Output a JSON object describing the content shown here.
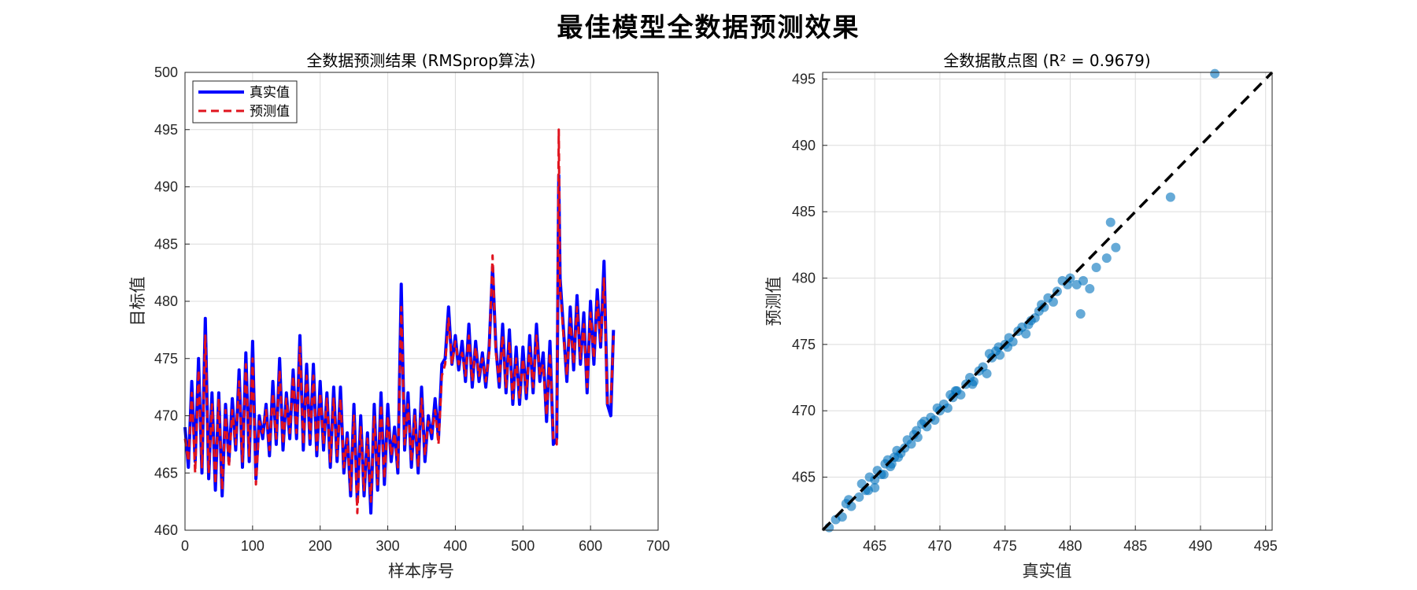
{
  "page": {
    "title": "最佳模型全数据预测效果"
  },
  "colors": {
    "true_line": "#0000ff",
    "pred_line": "#e0141e",
    "scatter": "#0072bd",
    "diag": "#000000",
    "grid": "#dcdcdc"
  },
  "chart_data": [
    {
      "type": "line",
      "title": "全数据预测结果 (RMSprop算法)",
      "xlabel": "样本序号",
      "ylabel": "目标值",
      "xlim": [
        0,
        700
      ],
      "ylim": [
        460,
        500
      ],
      "xticks": [
        0,
        100,
        200,
        300,
        400,
        500,
        600,
        700
      ],
      "yticks": [
        460,
        465,
        470,
        475,
        480,
        485,
        490,
        495,
        500
      ],
      "grid": true,
      "legend_position": "top-left",
      "x": [
        0,
        5,
        10,
        15,
        20,
        25,
        30,
        35,
        40,
        45,
        50,
        55,
        60,
        65,
        70,
        75,
        80,
        85,
        90,
        95,
        100,
        105,
        110,
        115,
        120,
        125,
        130,
        135,
        140,
        145,
        150,
        155,
        160,
        165,
        170,
        175,
        180,
        185,
        190,
        195,
        200,
        205,
        210,
        215,
        220,
        225,
        230,
        235,
        240,
        245,
        250,
        255,
        260,
        265,
        270,
        275,
        280,
        285,
        290,
        295,
        300,
        305,
        310,
        315,
        320,
        325,
        330,
        335,
        340,
        345,
        350,
        355,
        360,
        365,
        370,
        375,
        380,
        385,
        390,
        395,
        400,
        405,
        410,
        415,
        420,
        425,
        430,
        435,
        440,
        445,
        450,
        455,
        460,
        465,
        470,
        475,
        480,
        485,
        490,
        495,
        500,
        505,
        510,
        515,
        520,
        525,
        530,
        535,
        540,
        545,
        550,
        553,
        555,
        560,
        565,
        570,
        575,
        580,
        585,
        590,
        595,
        600,
        605,
        610,
        615,
        620,
        625,
        630,
        634
      ],
      "series": [
        {
          "name": "真实值",
          "style": "solid",
          "values": [
            469.0,
            465.5,
            473.0,
            466.0,
            475.0,
            465.0,
            478.5,
            464.5,
            472.0,
            463.5,
            472.0,
            463.0,
            471.0,
            466.0,
            471.5,
            467.0,
            474.0,
            465.5,
            475.5,
            466.0,
            476.5,
            464.5,
            470.0,
            468.0,
            471.0,
            466.5,
            473.0,
            467.5,
            475.0,
            467.0,
            472.0,
            468.0,
            474.0,
            468.0,
            477.0,
            467.0,
            474.5,
            467.5,
            474.5,
            466.5,
            473.0,
            467.0,
            472.0,
            465.5,
            472.5,
            466.0,
            472.5,
            465.0,
            468.5,
            463.0,
            471.0,
            462.5,
            470.0,
            463.0,
            468.5,
            461.5,
            471.0,
            463.5,
            472.0,
            464.0,
            471.0,
            466.0,
            469.0,
            465.0,
            481.5,
            467.0,
            472.0,
            465.5,
            470.5,
            465.0,
            472.5,
            466.0,
            470.0,
            468.0,
            471.5,
            468.0,
            474.5,
            475.0,
            479.5,
            474.5,
            477.0,
            474.0,
            476.5,
            473.0,
            478.0,
            472.5,
            476.5,
            473.0,
            475.5,
            472.5,
            476.0,
            483.0,
            476.0,
            472.5,
            478.0,
            472.0,
            477.5,
            471.0,
            476.0,
            471.0,
            476.0,
            471.5,
            477.0,
            472.0,
            478.0,
            473.0,
            475.5,
            469.5,
            476.5,
            467.5,
            468.0,
            491.0,
            482.0,
            477.5,
            473.0,
            479.5,
            474.0,
            480.5,
            474.5,
            479.0,
            472.0,
            480.0,
            474.5,
            481.0,
            476.0,
            483.5,
            471.0,
            470.0,
            477.5
          ]
        },
        {
          "name": "预测值",
          "style": "dashed",
          "values": [
            468.0,
            466.0,
            472.0,
            465.0,
            474.0,
            465.5,
            477.0,
            465.0,
            471.0,
            464.0,
            471.5,
            463.5,
            470.5,
            465.5,
            470.5,
            467.5,
            473.0,
            466.0,
            474.5,
            466.5,
            475.0,
            464.0,
            469.5,
            468.5,
            470.5,
            467.0,
            472.0,
            468.0,
            474.0,
            467.5,
            471.5,
            468.5,
            473.5,
            468.5,
            476.0,
            467.5,
            473.5,
            468.0,
            473.5,
            467.0,
            472.0,
            467.5,
            471.5,
            466.0,
            471.5,
            466.5,
            471.5,
            465.5,
            468.0,
            463.5,
            470.0,
            461.5,
            469.0,
            463.5,
            468.0,
            462.5,
            470.0,
            464.0,
            471.0,
            464.5,
            470.0,
            466.5,
            468.5,
            465.5,
            479.5,
            467.5,
            471.0,
            466.0,
            470.0,
            465.5,
            471.5,
            466.5,
            469.5,
            468.5,
            470.5,
            467.5,
            473.5,
            474.5,
            478.5,
            474.5,
            476.5,
            474.5,
            475.5,
            473.5,
            477.0,
            473.0,
            476.0,
            473.5,
            475.0,
            473.0,
            475.5,
            484.0,
            475.5,
            473.0,
            477.0,
            472.5,
            476.5,
            471.5,
            475.0,
            471.5,
            475.0,
            472.0,
            476.0,
            472.5,
            477.0,
            473.5,
            474.5,
            470.0,
            475.5,
            468.0,
            467.5,
            495.0,
            481.0,
            477.0,
            473.5,
            478.5,
            474.5,
            479.5,
            475.0,
            478.0,
            472.5,
            479.0,
            475.0,
            480.0,
            476.5,
            482.0,
            471.0,
            471.0,
            477.0
          ]
        }
      ]
    },
    {
      "type": "scatter",
      "title": "全数据散点图 (R² = 0.9679)",
      "xlabel": "真实值",
      "ylabel": "预测值",
      "xlim": [
        461,
        495.5
      ],
      "ylim": [
        461,
        495.5
      ],
      "xticks": [
        465,
        470,
        475,
        480,
        485,
        490,
        495
      ],
      "yticks": [
        465,
        470,
        475,
        480,
        485,
        490,
        495
      ],
      "grid": true,
      "reference_line": "y = x",
      "x": [
        461.5,
        462.0,
        462.5,
        463.0,
        463.2,
        463.8,
        464.0,
        464.3,
        464.6,
        465.0,
        465.2,
        465.5,
        465.8,
        466.0,
        466.2,
        466.5,
        466.7,
        467.0,
        467.3,
        467.5,
        467.8,
        468.0,
        468.3,
        468.6,
        469.0,
        469.3,
        469.6,
        470.0,
        470.3,
        470.6,
        471.0,
        471.3,
        471.6,
        472.0,
        472.3,
        472.6,
        473.0,
        473.3,
        473.6,
        474.0,
        474.3,
        474.6,
        475.0,
        475.3,
        475.6,
        476.0,
        476.3,
        476.6,
        477.0,
        477.3,
        477.6,
        478.0,
        478.3,
        478.7,
        479.0,
        479.4,
        479.8,
        480.0,
        480.5,
        481.0,
        481.5,
        482.0,
        482.8,
        483.1,
        483.5,
        487.7,
        491.1,
        464.5,
        465.7,
        466.8,
        468.2,
        469.8,
        471.2,
        472.5,
        473.8,
        475.2,
        476.8,
        470.8,
        468.8,
        466.3,
        474.5,
        477.8,
        480.8,
        462.8,
        465.0
      ],
      "y": [
        461.2,
        461.8,
        462.0,
        463.3,
        462.8,
        463.5,
        464.5,
        464.0,
        465.0,
        464.8,
        465.5,
        465.2,
        466.0,
        466.3,
        465.8,
        466.5,
        467.0,
        466.8,
        467.2,
        467.8,
        467.5,
        468.2,
        468.0,
        469.0,
        468.8,
        469.5,
        469.3,
        470.0,
        470.5,
        470.2,
        471.0,
        471.5,
        471.2,
        472.0,
        472.5,
        472.2,
        473.0,
        473.3,
        472.8,
        474.0,
        474.5,
        474.2,
        475.0,
        475.5,
        475.2,
        476.0,
        476.3,
        475.8,
        476.8,
        477.0,
        477.5,
        477.8,
        478.5,
        478.2,
        479.0,
        479.8,
        479.5,
        480.0,
        479.5,
        479.8,
        479.2,
        480.8,
        481.5,
        484.2,
        482.3,
        486.1,
        495.4,
        464.0,
        465.2,
        466.5,
        468.5,
        470.2,
        471.5,
        472.0,
        474.3,
        474.8,
        476.5,
        471.2,
        469.2,
        466.0,
        474.8,
        478.0,
        477.3,
        463.0,
        464.2
      ]
    }
  ]
}
